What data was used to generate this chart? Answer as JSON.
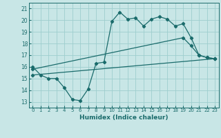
{
  "xlabel": "Humidex (Indice chaleur)",
  "bg_color": "#c8e6e6",
  "grid_color": "#9ecece",
  "line_color": "#1a6b6b",
  "xlim": [
    -0.5,
    23.5
  ],
  "ylim": [
    12.5,
    21.5
  ],
  "yticks": [
    13,
    14,
    15,
    16,
    17,
    18,
    19,
    20,
    21
  ],
  "xticks": [
    0,
    1,
    2,
    3,
    4,
    5,
    6,
    7,
    8,
    9,
    10,
    11,
    12,
    13,
    14,
    15,
    16,
    17,
    18,
    19,
    20,
    21,
    22,
    23
  ],
  "series1_x": [
    0,
    1,
    2,
    3,
    4,
    5,
    6,
    7,
    8,
    9,
    10,
    11,
    12,
    13,
    14,
    15,
    16,
    17,
    18,
    19,
    20,
    21,
    22,
    23
  ],
  "series1_y": [
    16.0,
    15.3,
    15.0,
    15.0,
    14.2,
    13.2,
    13.1,
    14.1,
    16.3,
    16.4,
    19.9,
    20.7,
    20.1,
    20.2,
    19.5,
    20.1,
    20.3,
    20.1,
    19.5,
    19.7,
    18.5,
    17.0,
    16.8,
    16.7
  ],
  "series2_x": [
    0,
    19,
    20,
    21,
    22,
    23
  ],
  "series2_y": [
    15.8,
    18.5,
    17.8,
    17.0,
    16.8,
    16.7
  ],
  "series3_x": [
    0,
    23
  ],
  "series3_y": [
    15.3,
    16.7
  ]
}
